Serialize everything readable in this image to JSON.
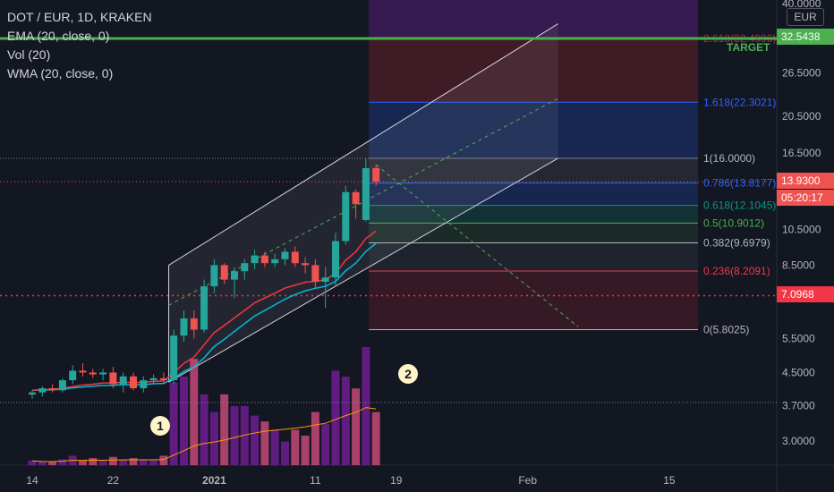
{
  "legend": {
    "symbol": "DOT / EUR, 1D, KRAKEN",
    "ema": "EMA (20, close, 0)",
    "vol": "Vol (20)",
    "wma": "WMA (20, close, 0)"
  },
  "currency_badge": "EUR",
  "markers": {
    "one": "1",
    "two": "2"
  },
  "price_tags": {
    "target_price": "32.5438",
    "last_price": "13.9300",
    "countdown": "05:20:17",
    "support_price": "7.0968"
  },
  "colors": {
    "background": "#131722",
    "up": "#26a69a",
    "down": "#ef5350",
    "target_line": "#4caf50",
    "support_line": "#f23645"
  },
  "chart_data": {
    "type": "candlestick",
    "scale": "log",
    "ylim": [
      2.6,
      40.0
    ],
    "y_ticks": [
      3.0,
      3.7,
      4.5,
      5.5,
      8.5,
      10.5,
      16.5,
      20.5,
      26.5,
      40.0
    ],
    "y_tick_labels": [
      "3.0000",
      "3.7000",
      "4.5000",
      "5.5000",
      "8.5000",
      "10.5000",
      "16.5000",
      "20.5000",
      "26.5000",
      "40.0000"
    ],
    "x_ticks": [
      {
        "day": 0,
        "label": "14"
      },
      {
        "day": 8,
        "label": "22"
      },
      {
        "day": 18,
        "label": "2021"
      },
      {
        "day": 28,
        "label": "11"
      },
      {
        "day": 36,
        "label": "19"
      },
      {
        "day": 49,
        "label": "Feb"
      },
      {
        "day": 63,
        "label": "15"
      }
    ],
    "candles": [
      {
        "o": 3.95,
        "h": 4.05,
        "l": 3.85,
        "c": 4.0
      },
      {
        "o": 4.0,
        "h": 4.15,
        "l": 3.9,
        "c": 4.1
      },
      {
        "o": 4.1,
        "h": 4.2,
        "l": 4.0,
        "c": 4.05
      },
      {
        "o": 4.05,
        "h": 4.35,
        "l": 4.0,
        "c": 4.3
      },
      {
        "o": 4.3,
        "h": 4.7,
        "l": 4.2,
        "c": 4.55
      },
      {
        "o": 4.55,
        "h": 4.75,
        "l": 4.4,
        "c": 4.5
      },
      {
        "o": 4.5,
        "h": 4.6,
        "l": 4.35,
        "c": 4.45
      },
      {
        "o": 4.45,
        "h": 4.6,
        "l": 4.3,
        "c": 4.5
      },
      {
        "o": 4.5,
        "h": 4.65,
        "l": 4.1,
        "c": 4.2
      },
      {
        "o": 4.2,
        "h": 4.5,
        "l": 4.0,
        "c": 4.4
      },
      {
        "o": 4.4,
        "h": 4.5,
        "l": 4.05,
        "c": 4.1
      },
      {
        "o": 4.1,
        "h": 4.4,
        "l": 4.0,
        "c": 4.3
      },
      {
        "o": 4.3,
        "h": 4.45,
        "l": 4.2,
        "c": 4.35
      },
      {
        "o": 4.35,
        "h": 4.5,
        "l": 4.2,
        "c": 4.3
      },
      {
        "o": 4.3,
        "h": 5.8,
        "l": 4.2,
        "c": 5.6
      },
      {
        "o": 5.6,
        "h": 6.5,
        "l": 5.4,
        "c": 6.2
      },
      {
        "o": 6.2,
        "h": 6.5,
        "l": 5.5,
        "c": 5.8
      },
      {
        "o": 5.8,
        "h": 7.8,
        "l": 5.7,
        "c": 7.5
      },
      {
        "o": 7.5,
        "h": 8.8,
        "l": 7.2,
        "c": 8.5
      },
      {
        "o": 8.5,
        "h": 8.6,
        "l": 7.6,
        "c": 7.8
      },
      {
        "o": 7.8,
        "h": 8.4,
        "l": 7.0,
        "c": 8.2
      },
      {
        "o": 8.2,
        "h": 8.8,
        "l": 7.8,
        "c": 8.6
      },
      {
        "o": 8.6,
        "h": 9.3,
        "l": 8.3,
        "c": 9.0
      },
      {
        "o": 9.0,
        "h": 9.2,
        "l": 8.4,
        "c": 8.6
      },
      {
        "o": 8.6,
        "h": 9.1,
        "l": 8.4,
        "c": 8.8
      },
      {
        "o": 8.8,
        "h": 9.4,
        "l": 8.5,
        "c": 9.2
      },
      {
        "o": 9.2,
        "h": 9.5,
        "l": 8.4,
        "c": 8.6
      },
      {
        "o": 8.6,
        "h": 8.9,
        "l": 8.1,
        "c": 8.5
      },
      {
        "o": 8.5,
        "h": 8.8,
        "l": 7.4,
        "c": 7.7
      },
      {
        "o": 7.7,
        "h": 8.4,
        "l": 6.6,
        "c": 7.9
      },
      {
        "o": 7.9,
        "h": 10.3,
        "l": 7.5,
        "c": 9.8
      },
      {
        "o": 9.8,
        "h": 13.6,
        "l": 9.6,
        "c": 13.1
      },
      {
        "o": 13.1,
        "h": 13.3,
        "l": 11.2,
        "c": 12.2
      },
      {
        "o": 11.1,
        "h": 16.0,
        "l": 11.0,
        "c": 15.1
      },
      {
        "o": 15.1,
        "h": 15.4,
        "l": 13.6,
        "c": 13.93
      }
    ],
    "volume": [
      0.04,
      0.03,
      0.03,
      0.05,
      0.08,
      0.04,
      0.06,
      0.04,
      0.07,
      0.05,
      0.06,
      0.05,
      0.05,
      0.08,
      0.7,
      0.75,
      0.9,
      0.6,
      0.45,
      0.6,
      0.5,
      0.5,
      0.42,
      0.37,
      0.3,
      0.2,
      0.3,
      0.25,
      0.45,
      0.35,
      0.8,
      0.75,
      0.65,
      1.0,
      0.45
    ],
    "ema": [
      4.05,
      4.06,
      4.06,
      4.08,
      4.11,
      4.13,
      4.15,
      4.17,
      4.17,
      4.19,
      4.18,
      4.19,
      4.21,
      4.22,
      4.35,
      4.53,
      4.65,
      4.91,
      5.25,
      5.48,
      5.74,
      6.01,
      6.29,
      6.5,
      6.72,
      6.95,
      7.14,
      7.3,
      7.41,
      7.5,
      7.72,
      8.22,
      8.6,
      9.22,
      9.67
    ],
    "wma": [
      4.05,
      4.07,
      4.07,
      4.1,
      4.14,
      4.18,
      4.2,
      4.23,
      4.23,
      4.25,
      4.24,
      4.25,
      4.27,
      4.28,
      4.5,
      4.75,
      4.93,
      5.3,
      5.7,
      5.95,
      6.22,
      6.5,
      6.8,
      7.0,
      7.2,
      7.42,
      7.55,
      7.68,
      7.72,
      7.8,
      8.1,
      8.75,
      9.2,
      9.95,
      10.4
    ],
    "fibonacci": [
      {
        "level": "2.618",
        "value": 32.4996,
        "label": "2.618(32.4996)"
      },
      {
        "level": "1.618",
        "value": 22.3021,
        "label": "1.618(22.3021)"
      },
      {
        "level": "1",
        "value": 16.0,
        "label": "1(16.0000)"
      },
      {
        "level": "0.786",
        "value": 13.8177,
        "label": "0.786(13.8177)"
      },
      {
        "level": "0.618",
        "value": 12.1045,
        "label": "0.618(12.1045)"
      },
      {
        "level": "0.5",
        "value": 10.9012,
        "label": "0.5(10.9012)"
      },
      {
        "level": "0.382",
        "value": 9.6979,
        "label": "0.382(9.6979)"
      },
      {
        "level": "0.236",
        "value": 8.2091,
        "label": "0.236(8.2091)"
      },
      {
        "level": "0",
        "value": 5.8025,
        "label": "0(5.8025)"
      }
    ],
    "target_label": "TARGET",
    "target_value": 32.5438,
    "support_value": 7.0968,
    "last_value": 13.93,
    "channel": {
      "start_day": 13.5,
      "end_day": 52,
      "upper": [
        8.5,
        35.5
      ],
      "mid": [
        6.7,
        22.8
      ],
      "lower": [
        4.25,
        16.0
      ]
    },
    "projection": {
      "from_day": 34,
      "from_value": 15.4,
      "to_day": 54,
      "to_value": 5.9
    }
  }
}
